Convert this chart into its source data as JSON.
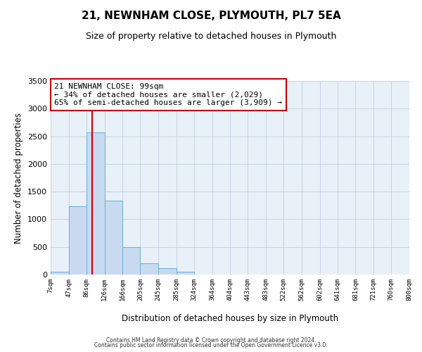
{
  "title": "21, NEWNHAM CLOSE, PLYMOUTH, PL7 5EA",
  "subtitle": "Size of property relative to detached houses in Plymouth",
  "xlabel": "Distribution of detached houses by size in Plymouth",
  "ylabel": "Number of detached properties",
  "bar_color": "#c8daf0",
  "bar_edge_color": "#6baed6",
  "background_color": "#ffffff",
  "ax_background": "#e8f0f8",
  "grid_color": "#b8c8d8",
  "annotation_box_color": "#ffffff",
  "annotation_box_edge": "#cc0000",
  "vline_color": "#cc0000",
  "vline_x": 99,
  "annotation_title": "21 NEWNHAM CLOSE: 99sqm",
  "annotation_line1": "← 34% of detached houses are smaller (2,029)",
  "annotation_line2": "65% of semi-detached houses are larger (3,909) →",
  "footer_line1": "Contains HM Land Registry data © Crown copyright and database right 2024.",
  "footer_line2": "Contains public sector information licensed under the Open Government Licence v3.0.",
  "bin_edges": [
    7,
    47,
    86,
    126,
    166,
    205,
    245,
    285,
    324,
    364,
    404,
    443,
    483,
    522,
    562,
    602,
    641,
    681,
    721,
    760,
    800
  ],
  "bin_heights": [
    50,
    1230,
    2570,
    1340,
    500,
    200,
    110,
    50,
    0,
    0,
    0,
    0,
    0,
    0,
    0,
    0,
    0,
    0,
    0,
    0
  ],
  "ylim": [
    0,
    3500
  ],
  "yticks": [
    0,
    500,
    1000,
    1500,
    2000,
    2500,
    3000,
    3500
  ],
  "tick_labels": [
    "7sqm",
    "47sqm",
    "86sqm",
    "126sqm",
    "166sqm",
    "205sqm",
    "245sqm",
    "285sqm",
    "324sqm",
    "364sqm",
    "404sqm",
    "443sqm",
    "483sqm",
    "522sqm",
    "562sqm",
    "602sqm",
    "641sqm",
    "681sqm",
    "721sqm",
    "760sqm",
    "800sqm"
  ]
}
